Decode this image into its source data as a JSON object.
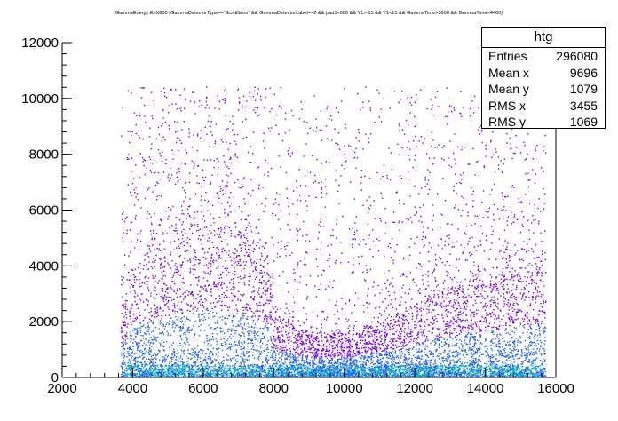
{
  "chart_data": {
    "type": "heatmap",
    "title": "GammaEnergy:ExX800 {GammaDetectorType==\"Scintillator\" && GammaDetectorLabel==2 && pad1<600 && Y1>-15 && Y1<15 && GammaTime>3600 && GammaTime<4400}",
    "xlabel": "",
    "ylabel": "",
    "xlim": [
      2000,
      16000
    ],
    "ylim": [
      0,
      12000
    ],
    "x_ticks": [
      "2000",
      "4000",
      "6000",
      "8000",
      "10000",
      "12000",
      "14000",
      "16000"
    ],
    "y_ticks": [
      "0",
      "2000",
      "4000",
      "6000",
      "8000",
      "10000",
      "12000"
    ],
    "occupied_region": {
      "x": [
        3650,
        15700
      ],
      "y": [
        0,
        10400
      ]
    },
    "density_profile": [
      {
        "x": 3700,
        "y_edge": 2500
      },
      {
        "x": 4000,
        "y_edge": 4300
      },
      {
        "x": 5000,
        "y_edge": 4700
      },
      {
        "x": 6000,
        "y_edge": 5500
      },
      {
        "x": 7000,
        "y_edge": 5200
      },
      {
        "x": 7800,
        "y_edge": 4300
      },
      {
        "x": 8000,
        "y_edge": 2200
      },
      {
        "x": 9000,
        "y_edge": 1600
      },
      {
        "x": 10000,
        "y_edge": 1600
      },
      {
        "x": 11000,
        "y_edge": 2000
      },
      {
        "x": 12000,
        "y_edge": 2600
      },
      {
        "x": 13000,
        "y_edge": 3300
      },
      {
        "x": 14000,
        "y_edge": 3700
      },
      {
        "x": 15000,
        "y_edge": 4100
      },
      {
        "x": 15600,
        "y_edge": 4300
      }
    ],
    "colors": {
      "dense": "#00d2ad",
      "medium": "#1f5cf5",
      "sparse": "#7a00e6",
      "axis": "#000000"
    },
    "stats_box": {
      "title": "htg",
      "rows": [
        {
          "label": "Entries",
          "value": "296080"
        },
        {
          "label": "Mean x",
          "value": "9696"
        },
        {
          "label": "Mean y",
          "value": "1079"
        },
        {
          "label": "RMS x",
          "value": "3455"
        },
        {
          "label": "RMS y",
          "value": "1069"
        }
      ]
    }
  }
}
